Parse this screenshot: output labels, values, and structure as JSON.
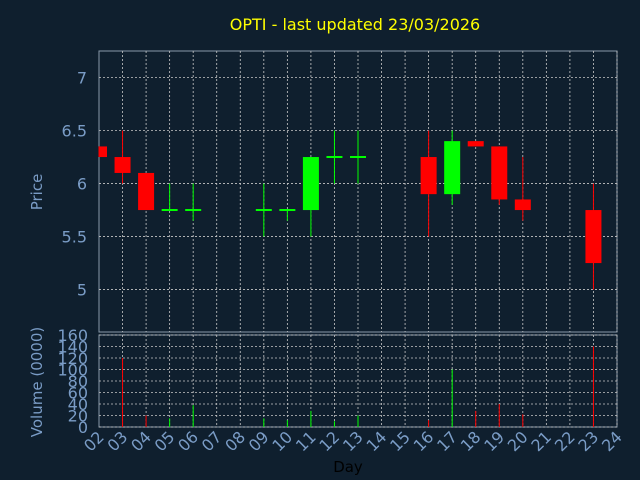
{
  "chart_data": [
    {
      "type": "candlestick",
      "title": "OPTI - last updated 23/03/2026",
      "ylabel": "Price",
      "ylim": [
        4.6,
        7.25
      ],
      "yticks": [
        5,
        5.5,
        6,
        6.5,
        7
      ],
      "ytick_labels": [
        "5",
        "5.5",
        "6",
        "6.5",
        "7"
      ],
      "grid": true,
      "colors": {
        "up": "#00ff00",
        "down": "#ff0000",
        "flat": "#00ff00"
      },
      "candles": [
        {
          "day": "02",
          "open": 6.35,
          "high": 6.35,
          "low": 6.25,
          "close": 6.25
        },
        {
          "day": "03",
          "open": 6.25,
          "high": 6.5,
          "low": 6.0,
          "close": 6.1
        },
        {
          "day": "04",
          "open": 6.1,
          "high": 6.1,
          "low": 5.75,
          "close": 5.75
        },
        {
          "day": "05",
          "open": 5.75,
          "high": 6.0,
          "low": 5.75,
          "close": 5.75
        },
        {
          "day": "06",
          "open": 5.75,
          "high": 6.0,
          "low": 5.65,
          "close": 5.75
        },
        {
          "day": "09",
          "open": 5.75,
          "high": 6.0,
          "low": 5.5,
          "close": 5.75
        },
        {
          "day": "10",
          "open": 5.75,
          "high": 5.75,
          "low": 5.65,
          "close": 5.75
        },
        {
          "day": "11",
          "open": 5.75,
          "high": 6.25,
          "low": 5.5,
          "close": 6.25
        },
        {
          "day": "12",
          "open": 6.25,
          "high": 6.5,
          "low": 6.0,
          "close": 6.25
        },
        {
          "day": "13",
          "open": 6.25,
          "high": 6.5,
          "low": 6.0,
          "close": 6.25
        },
        {
          "day": "16",
          "open": 6.25,
          "high": 6.5,
          "low": 5.5,
          "close": 5.9
        },
        {
          "day": "17",
          "open": 5.9,
          "high": 6.5,
          "low": 5.8,
          "close": 6.4
        },
        {
          "day": "18",
          "open": 6.4,
          "high": 6.4,
          "low": 6.35,
          "close": 6.35
        },
        {
          "day": "19",
          "open": 6.35,
          "high": 6.35,
          "low": 5.8,
          "close": 5.85
        },
        {
          "day": "20",
          "open": 5.85,
          "high": 6.25,
          "low": 5.65,
          "close": 5.75
        },
        {
          "day": "23",
          "open": 5.75,
          "high": 6.0,
          "low": 5.0,
          "close": 5.25
        }
      ]
    },
    {
      "type": "bar",
      "xlabel": "Day",
      "ylabel": "Volume (0000)",
      "ylim": [
        0,
        160
      ],
      "yticks": [
        0,
        20,
        40,
        60,
        80,
        100,
        120,
        140,
        160
      ],
      "ytick_labels": [
        "0",
        "20",
        "40",
        "60",
        "80",
        "100",
        "120",
        "140",
        "160"
      ],
      "categories": [
        "02",
        "03",
        "04",
        "05",
        "06",
        "07",
        "08",
        "09",
        "10",
        "11",
        "12",
        "13",
        "14",
        "15",
        "16",
        "17",
        "18",
        "19",
        "20",
        "21",
        "22",
        "23",
        "24"
      ],
      "bars": [
        {
          "day": "03",
          "value": 120,
          "color": "#ff0000"
        },
        {
          "day": "04",
          "value": 20,
          "color": "#ff0000"
        },
        {
          "day": "05",
          "value": 15,
          "color": "#00ff00"
        },
        {
          "day": "06",
          "value": 38,
          "color": "#00ff00"
        },
        {
          "day": "09",
          "value": 15,
          "color": "#00ff00"
        },
        {
          "day": "10",
          "value": 12,
          "color": "#00ff00"
        },
        {
          "day": "11",
          "value": 28,
          "color": "#00ff00"
        },
        {
          "day": "12",
          "value": 10,
          "color": "#00ff00"
        },
        {
          "day": "13",
          "value": 20,
          "color": "#00ff00"
        },
        {
          "day": "16",
          "value": 12,
          "color": "#ff0000"
        },
        {
          "day": "17",
          "value": 100,
          "color": "#00ff00"
        },
        {
          "day": "18",
          "value": 28,
          "color": "#ff0000"
        },
        {
          "day": "19",
          "value": 40,
          "color": "#ff0000"
        },
        {
          "day": "20",
          "value": 22,
          "color": "#ff0000"
        },
        {
          "day": "23",
          "value": 140,
          "color": "#ff0000"
        }
      ]
    }
  ]
}
